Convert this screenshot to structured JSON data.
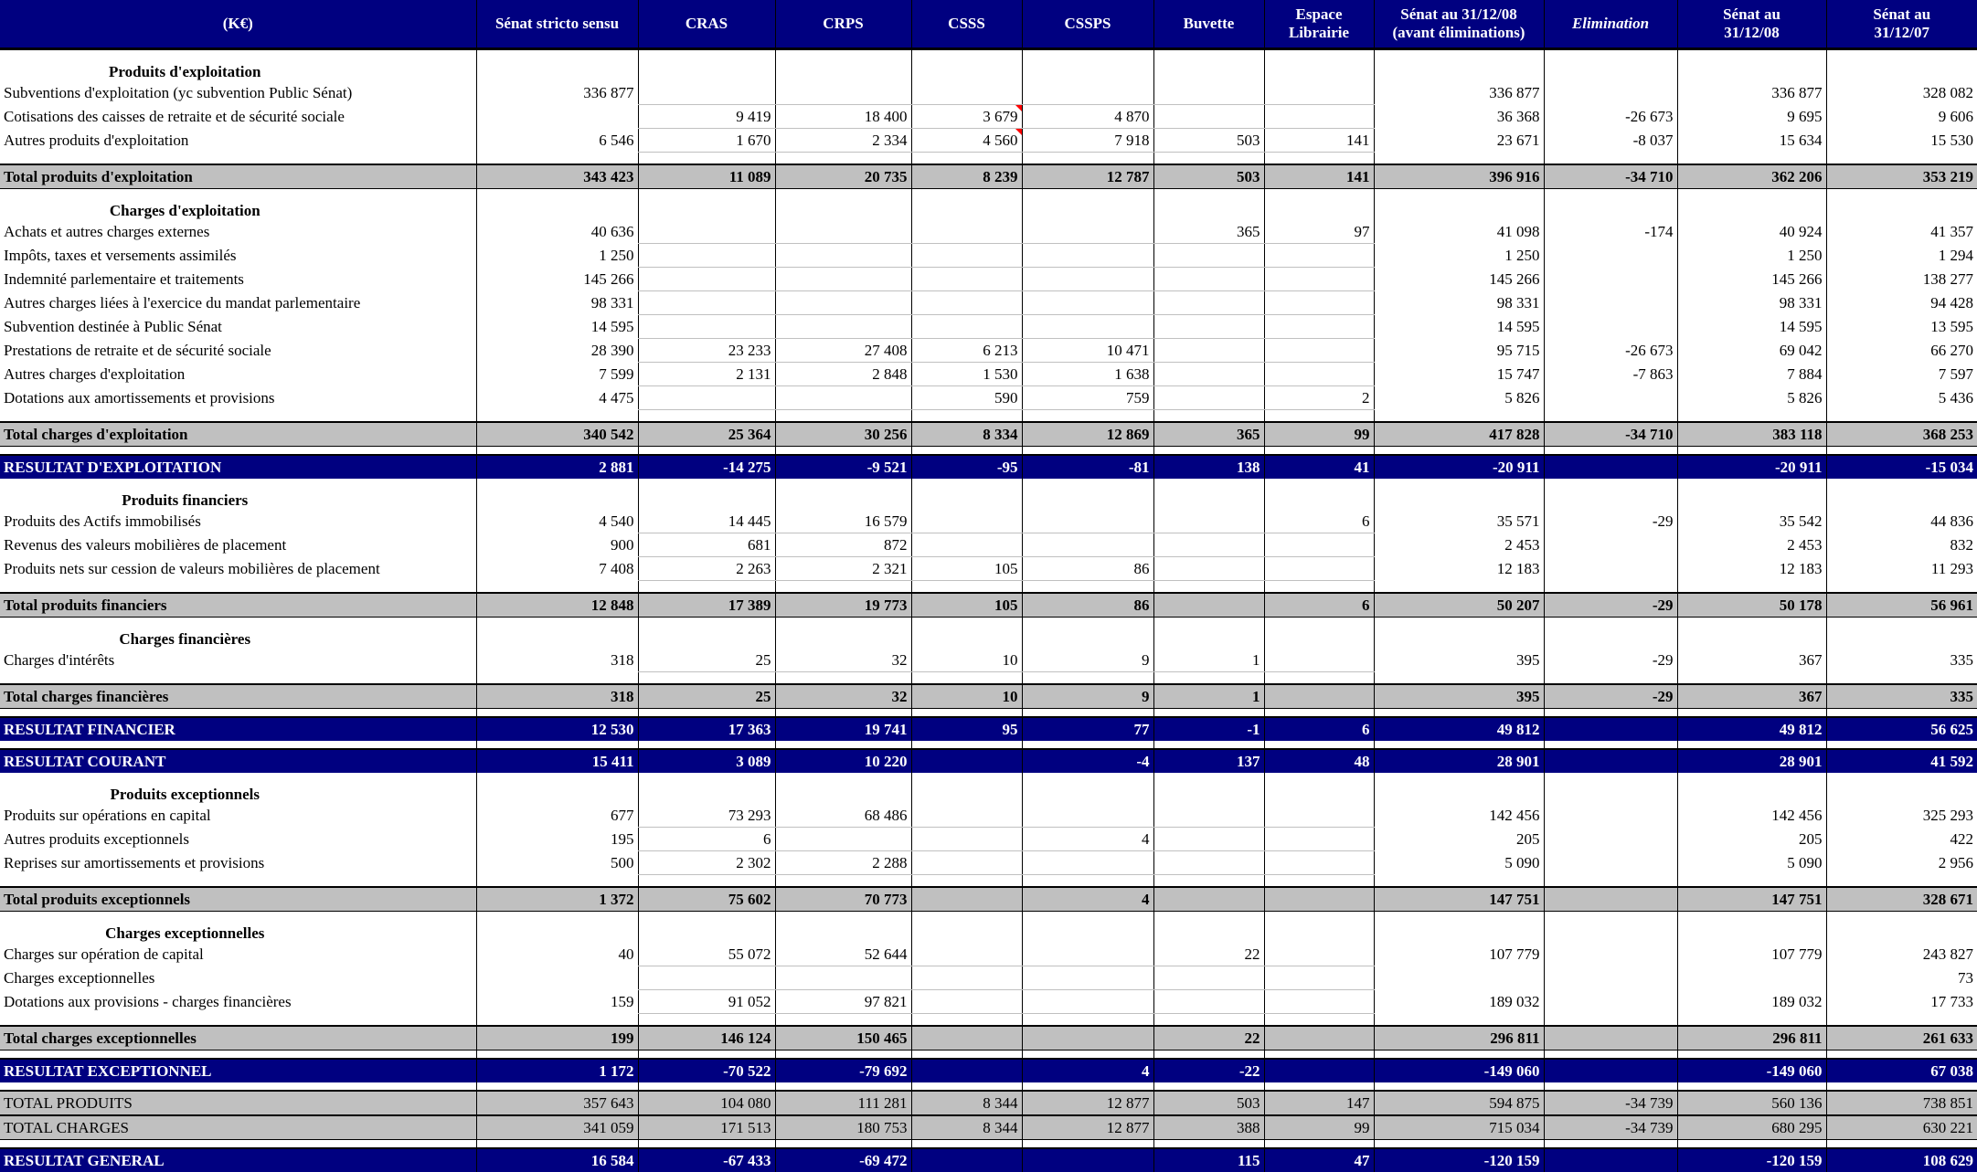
{
  "columns": [
    "(K€)",
    "Sénat stricto sensu",
    "CRAS",
    "CRPS",
    "CSSS",
    "CSSPS",
    "Buvette",
    "Espace Librairie",
    "Sénat au 31/12/08 (avant éliminations)",
    "Elimination",
    "Sénat au 31/12/08",
    "Sénat au 31/12/07"
  ],
  "colors": {
    "header": "#000080",
    "total": "#c0c0c0",
    "comment_marker": "#ff0000"
  },
  "rows": [
    {
      "type": "title",
      "label": "Produits d'exploitation"
    },
    {
      "type": "data",
      "label": "Subventions d'exploitation (yc subvention Public Sénat)",
      "values": [
        "336 877",
        "",
        "",
        "",
        "",
        "",
        "",
        "336 877",
        "",
        "336 877",
        "328 082"
      ]
    },
    {
      "type": "data",
      "label": "Cotisations des caisses de retraite et de sécurité sociale",
      "values": [
        "",
        "9 419",
        "18 400",
        "3 679",
        "4 870",
        "",
        "",
        "36 368",
        "-26 673",
        "9 695",
        "9 606"
      ],
      "comment_cols": [
        3
      ]
    },
    {
      "type": "data",
      "label": "Autres produits d'exploitation",
      "values": [
        "6 546",
        "1 670",
        "2 334",
        "4 560",
        "7 918",
        "503",
        "141",
        "23 671",
        "-8 037",
        "15 634",
        "15 530"
      ],
      "comment_cols": [
        3
      ]
    },
    {
      "type": "blank"
    },
    {
      "type": "total",
      "label": "Total produits d'exploitation",
      "values": [
        "343 423",
        "11 089",
        "20 735",
        "8 239",
        "12 787",
        "503",
        "141",
        "396 916",
        "-34 710",
        "362 206",
        "353 219"
      ]
    },
    {
      "type": "title",
      "label": "Charges d'exploitation"
    },
    {
      "type": "data",
      "label": "Achats et autres charges externes",
      "values": [
        "40 636",
        "",
        "",
        "",
        "",
        "365",
        "97",
        "41 098",
        "-174",
        "40 924",
        "41 357"
      ]
    },
    {
      "type": "data",
      "label": "Impôts, taxes et versements assimilés",
      "values": [
        "1 250",
        "",
        "",
        "",
        "",
        "",
        "",
        "1 250",
        "",
        "1 250",
        "1 294"
      ]
    },
    {
      "type": "data",
      "label": "Indemnité parlementaire et traitements",
      "values": [
        "145 266",
        "",
        "",
        "",
        "",
        "",
        "",
        "145 266",
        "",
        "145 266",
        "138 277"
      ]
    },
    {
      "type": "data",
      "label": "Autres charges liées à l'exercice du mandat parlementaire",
      "values": [
        "98 331",
        "",
        "",
        "",
        "",
        "",
        "",
        "98 331",
        "",
        "98 331",
        "94 428"
      ]
    },
    {
      "type": "data",
      "label": "Subvention destinée à Public Sénat",
      "values": [
        "14 595",
        "",
        "",
        "",
        "",
        "",
        "",
        "14 595",
        "",
        "14 595",
        "13 595"
      ]
    },
    {
      "type": "data",
      "label": "Prestations de retraite et de sécurité sociale",
      "values": [
        "28 390",
        "23 233",
        "27 408",
        "6 213",
        "10 471",
        "",
        "",
        "95 715",
        "-26 673",
        "69 042",
        "66 270"
      ]
    },
    {
      "type": "data",
      "label": "Autres charges d'exploitation",
      "values": [
        "7 599",
        "2 131",
        "2 848",
        "1 530",
        "1 638",
        "",
        "",
        "15 747",
        "-7 863",
        "7 884",
        "7 597"
      ]
    },
    {
      "type": "data",
      "label": "Dotations aux amortissements et provisions",
      "values": [
        "4 475",
        "",
        "",
        "590",
        "759",
        "",
        "2",
        "5 826",
        "",
        "5 826",
        "5 436"
      ]
    },
    {
      "type": "blank"
    },
    {
      "type": "total",
      "label": "Total charges d'exploitation",
      "values": [
        "340 542",
        "25 364",
        "30 256",
        "8 334",
        "12 869",
        "365",
        "99",
        "417 828",
        "-34 710",
        "383 118",
        "368 253"
      ]
    },
    {
      "type": "spacer"
    },
    {
      "type": "result",
      "label": "RESULTAT D'EXPLOITATION",
      "values": [
        "2 881",
        "-14 275",
        "-9 521",
        "-95",
        "-81",
        "138",
        "41",
        "-20 911",
        "",
        "-20 911",
        "-15 034"
      ]
    },
    {
      "type": "title",
      "label": "Produits financiers"
    },
    {
      "type": "data",
      "label": "Produits des Actifs immobilisés",
      "values": [
        "4 540",
        "14 445",
        "16 579",
        "",
        "",
        "",
        "6",
        "35 571",
        "-29",
        "35 542",
        "44 836"
      ]
    },
    {
      "type": "data",
      "label": "Revenus des valeurs mobilières de placement",
      "values": [
        "900",
        "681",
        "872",
        "",
        "",
        "",
        "",
        "2 453",
        "",
        "2 453",
        "832"
      ]
    },
    {
      "type": "data",
      "label": "Produits nets sur cession de valeurs mobilières de placement",
      "values": [
        "7 408",
        "2 263",
        "2 321",
        "105",
        "86",
        "",
        "",
        "12 183",
        "",
        "12 183",
        "11 293"
      ]
    },
    {
      "type": "blank"
    },
    {
      "type": "total",
      "label": "Total produits financiers",
      "values": [
        "12 848",
        "17 389",
        "19 773",
        "105",
        "86",
        "",
        "6",
        "50 207",
        "-29",
        "50 178",
        "56 961"
      ]
    },
    {
      "type": "title",
      "label": "Charges financières"
    },
    {
      "type": "data",
      "label": "Charges d'intérêts",
      "values": [
        "318",
        "25",
        "32",
        "10",
        "9",
        "1",
        "",
        "395",
        "-29",
        "367",
        "335"
      ]
    },
    {
      "type": "blank"
    },
    {
      "type": "total",
      "label": "Total charges financières",
      "values": [
        "318",
        "25",
        "32",
        "10",
        "9",
        "1",
        "",
        "395",
        "-29",
        "367",
        "335"
      ]
    },
    {
      "type": "spacer"
    },
    {
      "type": "result",
      "label": "RESULTAT FINANCIER",
      "values": [
        "12 530",
        "17 363",
        "19 741",
        "95",
        "77",
        "-1",
        "6",
        "49 812",
        "",
        "49 812",
        "56 625"
      ]
    },
    {
      "type": "spacer"
    },
    {
      "type": "result",
      "label": "RESULTAT COURANT",
      "values": [
        "15 411",
        "3 089",
        "10 220",
        "",
        "-4",
        "137",
        "48",
        "28 901",
        "",
        "28 901",
        "41 592"
      ]
    },
    {
      "type": "title",
      "label": "Produits exceptionnels"
    },
    {
      "type": "data",
      "label": "Produits sur opérations en capital",
      "values": [
        "677",
        "73 293",
        "68 486",
        "",
        "",
        "",
        "",
        "142 456",
        "",
        "142 456",
        "325 293"
      ]
    },
    {
      "type": "data",
      "label": "Autres produits exceptionnels",
      "values": [
        "195",
        "6",
        "",
        "",
        "4",
        "",
        "",
        "205",
        "",
        "205",
        "422"
      ]
    },
    {
      "type": "data",
      "label": "Reprises sur amortissements et provisions",
      "values": [
        "500",
        "2 302",
        "2 288",
        "",
        "",
        "",
        "",
        "5 090",
        "",
        "5 090",
        "2 956"
      ]
    },
    {
      "type": "blank"
    },
    {
      "type": "total",
      "label": "Total produits exceptionnels",
      "values": [
        "1 372",
        "75 602",
        "70 773",
        "",
        "4",
        "",
        "",
        "147 751",
        "",
        "147 751",
        "328 671"
      ]
    },
    {
      "type": "title",
      "label": "Charges exceptionnelles"
    },
    {
      "type": "data",
      "label": "Charges sur opération de capital",
      "values": [
        "40",
        "55 072",
        "52 644",
        "",
        "",
        "22",
        "",
        "107 779",
        "",
        "107 779",
        "243 827"
      ]
    },
    {
      "type": "data",
      "label": "Charges exceptionnelles",
      "values": [
        "",
        "",
        "",
        "",
        "",
        "",
        "",
        "",
        "",
        "",
        "73"
      ]
    },
    {
      "type": "data",
      "label": "Dotations aux provisions - charges financières",
      "values": [
        "159",
        "91 052",
        "97 821",
        "",
        "",
        "",
        "",
        "189 032",
        "",
        "189 032",
        "17 733"
      ]
    },
    {
      "type": "blank"
    },
    {
      "type": "total",
      "label": "Total charges exceptionnelles",
      "values": [
        "199",
        "146 124",
        "150 465",
        "",
        "",
        "22",
        "",
        "296 811",
        "",
        "296 811",
        "261 633"
      ]
    },
    {
      "type": "spacer"
    },
    {
      "type": "result",
      "label": "RESULTAT EXCEPTIONNEL",
      "values": [
        "1 172",
        "-70 522",
        "-79 692",
        "",
        "4",
        "-22",
        "",
        "-149 060",
        "",
        "-149 060",
        "67 038"
      ]
    },
    {
      "type": "spacer"
    },
    {
      "type": "total",
      "plain": true,
      "label": "TOTAL PRODUITS",
      "values": [
        "357 643",
        "104 080",
        "111 281",
        "8 344",
        "12 877",
        "503",
        "147",
        "594 875",
        "-34 739",
        "560 136",
        "738 851"
      ]
    },
    {
      "type": "total",
      "plain": true,
      "label": "TOTAL CHARGES",
      "values": [
        "341 059",
        "171 513",
        "180 753",
        "8 344",
        "12 877",
        "388",
        "99",
        "715 034",
        "-34 739",
        "680 295",
        "630 221"
      ]
    },
    {
      "type": "spacer"
    },
    {
      "type": "result",
      "label": "RESULTAT GENERAL",
      "values": [
        "16 584",
        "-67 433",
        "-69 472",
        "",
        "",
        "115",
        "47",
        "-120 159",
        "",
        "-120 159",
        "108 629"
      ]
    }
  ]
}
